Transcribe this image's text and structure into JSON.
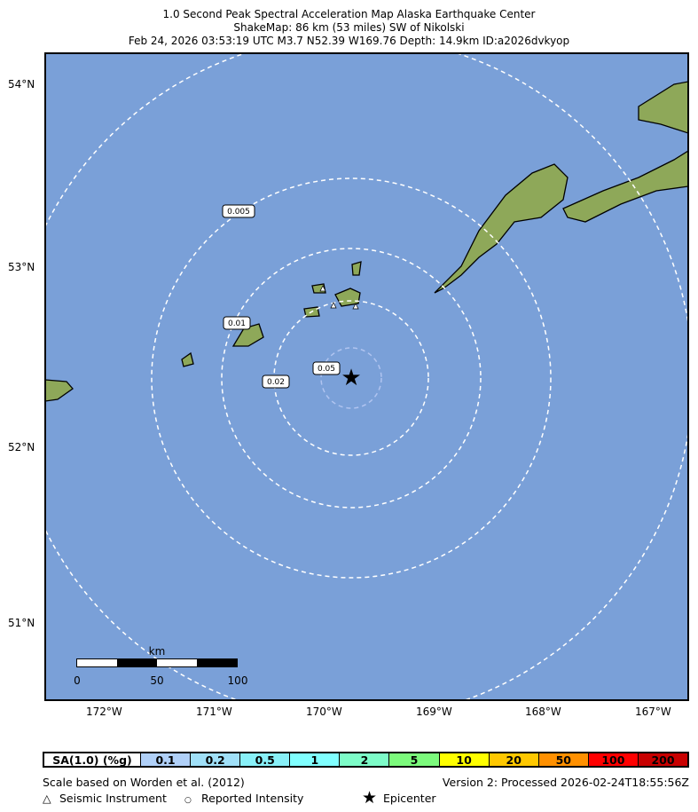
{
  "title": {
    "line1": "1.0 Second Peak Spectral Acceleration Map Alaska Earthquake Center",
    "line2": "ShakeMap: 86 km (53 miles) SW of Nikolski",
    "line3": "Feb 24, 2026 03:53:19 UTC M3.7 N52.39 W169.76 Depth: 14.9km ID:a2026dvkyop"
  },
  "map": {
    "ocean_color": "#7aa0d8",
    "land_color": "#8ea859",
    "lat_labels": [
      "54°N",
      "53°N",
      "52°N",
      "51°N"
    ],
    "lon_labels": [
      "172°W",
      "171°W",
      "170°W",
      "169°W",
      "168°W",
      "167°W"
    ],
    "contour_labels": [
      "0.005",
      "0.01",
      "0.02",
      "0.05"
    ],
    "scalebar": {
      "unit": "km",
      "ticks": [
        "0",
        "50",
        "100"
      ]
    },
    "epicenter_icon": "star-icon"
  },
  "legend": {
    "label": "SA(1.0) (%g)",
    "bins": [
      {
        "v": "0.1",
        "c": "#b0d0f8"
      },
      {
        "v": "0.2",
        "c": "#a0e0f8"
      },
      {
        "v": "0.5",
        "c": "#88f0f8"
      },
      {
        "v": "1",
        "c": "#80ffff"
      },
      {
        "v": "2",
        "c": "#7dfcc8"
      },
      {
        "v": "5",
        "c": "#7cfa7c"
      },
      {
        "v": "10",
        "c": "#ffff00"
      },
      {
        "v": "20",
        "c": "#ffc800"
      },
      {
        "v": "50",
        "c": "#ff9000"
      },
      {
        "v": "100",
        "c": "#ff0000"
      },
      {
        "v": "200",
        "c": "#c80000"
      }
    ]
  },
  "footer": {
    "scale_note": "Scale based on Worden et al. (2012)",
    "version": "Version 2: Processed 2026-02-24T18:55:56Z",
    "seismic": "Seismic Instrument",
    "reported": "Reported Intensity",
    "epicenter": "Epicenter"
  }
}
